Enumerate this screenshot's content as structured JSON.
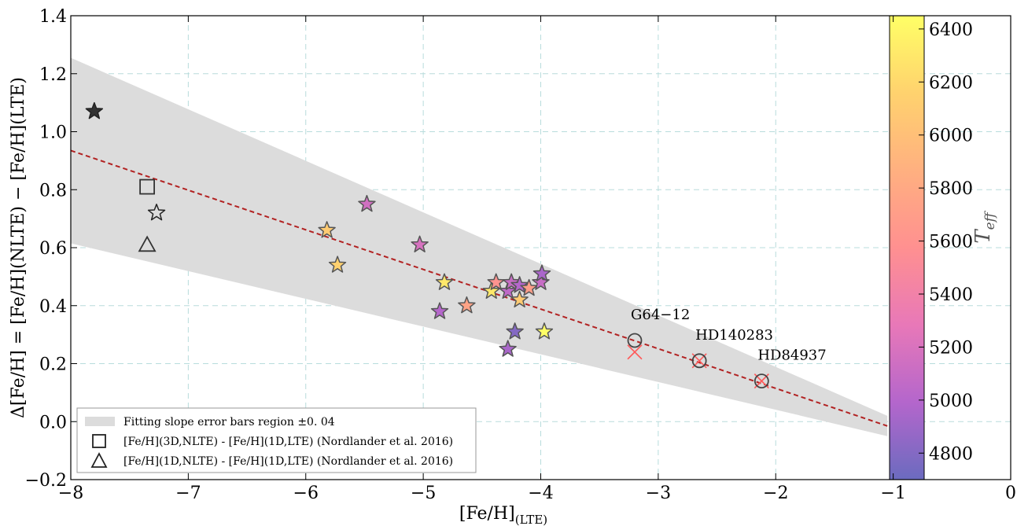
{
  "chart_data": {
    "type": "scatter",
    "xlabel": "[Fe/H]",
    "xlabel_sub": "(LTE)",
    "ylabel": "Δ[Fe/H] = [Fe/H](NLTE) − [Fe/H](LTE)",
    "xlim": [
      -8,
      0
    ],
    "ylim": [
      -0.2,
      1.4
    ],
    "xticks": [
      -8,
      -7,
      -6,
      -5,
      -4,
      -3,
      -2,
      -1,
      0
    ],
    "xtick_labels": [
      "−8",
      "−7",
      "−6",
      "−5",
      "−4",
      "−3",
      "−2",
      "−1",
      "0"
    ],
    "yticks": [
      -0.2,
      0.0,
      0.2,
      0.4,
      0.6,
      0.8,
      1.0,
      1.2,
      1.4
    ],
    "ytick_labels": [
      "−0.2",
      "0.0",
      "0.2",
      "0.4",
      "0.6",
      "0.8",
      "1.0",
      "1.2",
      "1.4"
    ],
    "grid": true,
    "fit_line": {
      "x0": -8,
      "y0": 0.935,
      "x1": -1.05,
      "y1": -0.015,
      "color": "#b22222"
    },
    "error_band": {
      "upper": [
        [
          -8,
          1.255
        ],
        [
          -1.05,
          0.02
        ]
      ],
      "lower": [
        [
          -8,
          0.615
        ],
        [
          -1.05,
          -0.05
        ]
      ],
      "color": "#dcdcdc"
    },
    "colorbar": {
      "title": "T",
      "title_sub": "eff",
      "min": 4700,
      "max": 6450,
      "ticks": [
        4800,
        5000,
        5200,
        5400,
        5600,
        5800,
        6000,
        6200,
        6400
      ],
      "stops": [
        "#6b6bbf",
        "#b466cc",
        "#e878b8",
        "#ff9090",
        "#ffb080",
        "#ffd26e",
        "#ffff66"
      ]
    },
    "stars": [
      {
        "x": -7.8,
        "y": 1.07,
        "teff": null,
        "fill": "#333333"
      },
      {
        "x": -7.27,
        "y": 0.72,
        "teff": null,
        "fill": "none"
      },
      {
        "x": -5.82,
        "y": 0.66,
        "teff": 6100
      },
      {
        "x": -5.73,
        "y": 0.54,
        "teff": 6150
      },
      {
        "x": -5.48,
        "y": 0.75,
        "teff": 5150
      },
      {
        "x": -5.03,
        "y": 0.61,
        "teff": 5180
      },
      {
        "x": -4.82,
        "y": 0.48,
        "teff": 6300
      },
      {
        "x": -4.86,
        "y": 0.38,
        "teff": 5000
      },
      {
        "x": -4.63,
        "y": 0.4,
        "teff": 5750
      },
      {
        "x": -4.42,
        "y": 0.45,
        "teff": 6300
      },
      {
        "x": -4.38,
        "y": 0.48,
        "teff": 5600
      },
      {
        "x": -4.28,
        "y": 0.45,
        "teff": 5050
      },
      {
        "x": -4.25,
        "y": 0.48,
        "teff": 5100
      },
      {
        "x": -4.18,
        "y": 0.47,
        "teff": 5000
      },
      {
        "x": -4.18,
        "y": 0.42,
        "teff": 6100
      },
      {
        "x": -4.1,
        "y": 0.46,
        "teff": 5700
      },
      {
        "x": -4.0,
        "y": 0.48,
        "teff": 5100
      },
      {
        "x": -3.99,
        "y": 0.51,
        "teff": 4950
      },
      {
        "x": -4.22,
        "y": 0.31,
        "teff": 4800
      },
      {
        "x": -4.28,
        "y": 0.25,
        "teff": 4950
      },
      {
        "x": -3.97,
        "y": 0.31,
        "teff": 6450
      }
    ],
    "open_markers": [
      {
        "shape": "square",
        "x": -7.35,
        "y": 0.81
      },
      {
        "shape": "triangle",
        "x": -7.35,
        "y": 0.61
      }
    ],
    "named_points": [
      {
        "label": "G64−12",
        "x": -3.2,
        "y": 0.28,
        "x_marker_y": 0.24
      },
      {
        "label": "HD140283",
        "x": -2.65,
        "y": 0.21,
        "x_marker_y": 0.21
      },
      {
        "label": "HD84937",
        "x": -2.12,
        "y": 0.14,
        "x_marker_y": 0.14
      }
    ],
    "legend": {
      "placement": "lower-left",
      "entries": [
        {
          "marker": "band",
          "label": "Fitting slope error bars region ±0. 04"
        },
        {
          "marker": "square",
          "label": "[Fe/H](3D,NLTE) - [Fe/H](1D,LTE) (Nordlander et al. 2016)"
        },
        {
          "marker": "triangle",
          "label": "[Fe/H](1D,NLTE) - [Fe/H](1D,LTE) (Nordlander et al. 2016)"
        }
      ]
    }
  }
}
